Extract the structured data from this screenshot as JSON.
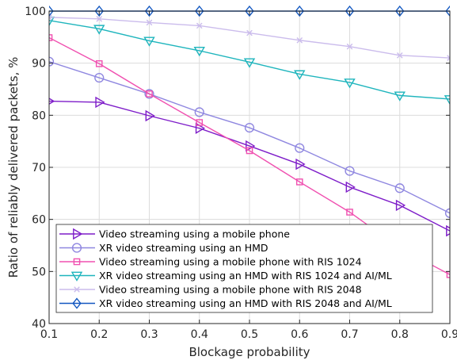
{
  "chart_data": {
    "type": "line",
    "xlabel": "Blockage probability",
    "ylabel": "Ratio of reliably delivered packets, %",
    "xlim": [
      0.1,
      0.9
    ],
    "ylim": [
      40,
      100
    ],
    "xticks": [
      "0.1",
      "0.2",
      "0.3",
      "0.4",
      "0.5",
      "0.6",
      "0.7",
      "0.8",
      "0.9"
    ],
    "yticks": [
      "40",
      "50",
      "60",
      "70",
      "80",
      "90",
      "100"
    ],
    "grid": true,
    "legend_position": "bottom-left",
    "x": [
      0.1,
      0.2,
      0.3,
      0.4,
      0.5,
      0.6,
      0.7,
      0.8,
      0.9
    ],
    "series": [
      {
        "name": "Video streaming using a mobile phone",
        "color": "#7e1dc9",
        "marker": "triangle-right",
        "values": [
          82.7,
          82.5,
          79.9,
          77.5,
          74.1,
          70.6,
          66.2,
          62.7,
          57.8
        ]
      },
      {
        "name": "XR video streaming using an HMD",
        "color": "#8f87e0",
        "marker": "circle",
        "values": [
          90.3,
          87.2,
          84.1,
          80.6,
          77.6,
          73.7,
          69.3,
          66.0,
          61.2
        ]
      },
      {
        "name": "Video streaming using a mobile phone with RIS 1024",
        "color": "#f050b0",
        "marker": "square",
        "values": [
          94.9,
          89.9,
          84.1,
          78.6,
          73.2,
          67.2,
          61.4,
          54.5,
          49.4
        ]
      },
      {
        "name": "XR video streaming using an HMD with RIS 1024 and AI/ML",
        "color": "#1fb5bd",
        "marker": "triangle-down",
        "values": [
          98.2,
          96.6,
          94.3,
          92.4,
          90.2,
          87.9,
          86.3,
          83.8,
          83.1
        ]
      },
      {
        "name": "Video streaming using a mobile phone with RIS 2048",
        "color": "#cbbcec",
        "marker": "x",
        "values": [
          98.8,
          98.5,
          97.8,
          97.2,
          95.8,
          94.4,
          93.2,
          91.5,
          91.0
        ]
      },
      {
        "name": "XR video streaming using an HMD with RIS 2048 and AI/ML",
        "color": "#1257c0",
        "marker": "diamond",
        "values": [
          100,
          100,
          100,
          100,
          100,
          100,
          100,
          100,
          100
        ]
      }
    ]
  }
}
